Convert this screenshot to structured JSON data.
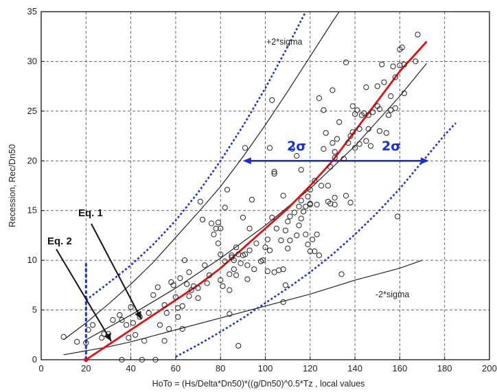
{
  "chart_data": {
    "type": "scatter",
    "title": "",
    "xlabel": "HoTo = (Hs/Delta*Dn50)*((g/Dn50)^0.5*Tz , local values",
    "ylabel": "Recession, Rec/Dn50",
    "xlim": [
      0,
      200
    ],
    "ylim": [
      0,
      35
    ],
    "x_ticks": [
      0,
      20,
      40,
      60,
      80,
      100,
      120,
      140,
      160,
      180,
      200
    ],
    "y_ticks": [
      0,
      5,
      10,
      15,
      20,
      25,
      30,
      35
    ],
    "grid": true,
    "scatter_points": [
      [
        10,
        2.3
      ],
      [
        16,
        1.8
      ],
      [
        20,
        1.7
      ],
      [
        21,
        3.0
      ],
      [
        23,
        3.5
      ],
      [
        27,
        2.2
      ],
      [
        28,
        2.6
      ],
      [
        30,
        2.6
      ],
      [
        32,
        4.0
      ],
      [
        35,
        4.5
      ],
      [
        36,
        4.0
      ],
      [
        36,
        0.0
      ],
      [
        38,
        3.5
      ],
      [
        39,
        2.2
      ],
      [
        40,
        5.3
      ],
      [
        41,
        3.7
      ],
      [
        42,
        2.5
      ],
      [
        44,
        4.3
      ],
      [
        45,
        0.0
      ],
      [
        46,
        1.9
      ],
      [
        48,
        4.7
      ],
      [
        50,
        6.5
      ],
      [
        51,
        0.0
      ],
      [
        52,
        7.3
      ],
      [
        53,
        3.5
      ],
      [
        55,
        5.5
      ],
      [
        55,
        1.9
      ],
      [
        56,
        4.7
      ],
      [
        57,
        3.1
      ],
      [
        58,
        7.8
      ],
      [
        59,
        7.5
      ],
      [
        60,
        6.3
      ],
      [
        61,
        5.2
      ],
      [
        61,
        4.3
      ],
      [
        62,
        8.2
      ],
      [
        63,
        3.1
      ],
      [
        63,
        5.4
      ],
      [
        64,
        10.0
      ],
      [
        65,
        7.6
      ],
      [
        66,
        6.4
      ],
      [
        66,
        8.8
      ],
      [
        67,
        7.0
      ],
      [
        68,
        7.4
      ],
      [
        70,
        6.2
      ],
      [
        70,
        7.2
      ],
      [
        71,
        15.9
      ],
      [
        72,
        14.1
      ],
      [
        73,
        9.5
      ],
      [
        74,
        7.7
      ],
      [
        75,
        8.5
      ],
      [
        76,
        13.7
      ],
      [
        77,
        12.6
      ],
      [
        78,
        13.2
      ],
      [
        79,
        13.8
      ],
      [
        79,
        11.7
      ],
      [
        80,
        13.2
      ],
      [
        80,
        10.6
      ],
      [
        80,
        8.0
      ],
      [
        81,
        7.4
      ],
      [
        82,
        15.3
      ],
      [
        82,
        9.9
      ],
      [
        83,
        17.1
      ],
      [
        84,
        8.6
      ],
      [
        84,
        7.0
      ],
      [
        84,
        4.6
      ],
      [
        85,
        10.5
      ],
      [
        85,
        10.3
      ],
      [
        86,
        10.0
      ],
      [
        86,
        9.1
      ],
      [
        87,
        8.5
      ],
      [
        87,
        11.3
      ],
      [
        88,
        1.4
      ],
      [
        88,
        10.6
      ],
      [
        89,
        9.7
      ],
      [
        90,
        14.3
      ],
      [
        90,
        10.5
      ],
      [
        91,
        21.3
      ],
      [
        91,
        10.6
      ],
      [
        92,
        8.1
      ],
      [
        92,
        9.5
      ],
      [
        93,
        13.2
      ],
      [
        93,
        11.0
      ],
      [
        94,
        16.1
      ],
      [
        95,
        9.1
      ],
      [
        96,
        11.7
      ],
      [
        98,
        9.9
      ],
      [
        99,
        10.0
      ],
      [
        100,
        11.3
      ],
      [
        101,
        8.9
      ],
      [
        101,
        12.1
      ],
      [
        102,
        11.0
      ],
      [
        102,
        21.3
      ],
      [
        103,
        14.3
      ],
      [
        103,
        26.1
      ],
      [
        104,
        18.9
      ],
      [
        104,
        18.7
      ],
      [
        104,
        8.8
      ],
      [
        105,
        13.2
      ],
      [
        106,
        9.0
      ],
      [
        107,
        12.0
      ],
      [
        108,
        16.5
      ],
      [
        108,
        9.1
      ],
      [
        108,
        5.8
      ],
      [
        109,
        7.5
      ],
      [
        109,
        13.0
      ],
      [
        110,
        13.9
      ],
      [
        110,
        11.2
      ],
      [
        111,
        12.0
      ],
      [
        111,
        14.4
      ],
      [
        112,
        21.2
      ],
      [
        113,
        14.8
      ],
      [
        114,
        20.5
      ],
      [
        114,
        12.5
      ],
      [
        115,
        15.4
      ],
      [
        115,
        13.5
      ],
      [
        116,
        16.0
      ],
      [
        116,
        14.2
      ],
      [
        116,
        19.1
      ],
      [
        117,
        14.9
      ],
      [
        118,
        12.6
      ],
      [
        118,
        15.4
      ],
      [
        119,
        11.6
      ],
      [
        119,
        16.4
      ],
      [
        120,
        17.1
      ],
      [
        120,
        15.7
      ],
      [
        120,
        15.6
      ],
      [
        120,
        10.9
      ],
      [
        121,
        12.1
      ],
      [
        122,
        18.0
      ],
      [
        122,
        10.9
      ],
      [
        123,
        12.6
      ],
      [
        123,
        15.6
      ],
      [
        124,
        10.5
      ],
      [
        124,
        26.3
      ],
      [
        125,
        17.5
      ],
      [
        126,
        21.2
      ],
      [
        126,
        25.1
      ],
      [
        127,
        22.8
      ],
      [
        128,
        15.9
      ],
      [
        128,
        17.5
      ],
      [
        129,
        19.4
      ],
      [
        129,
        15.7
      ],
      [
        130,
        21.8
      ],
      [
        130,
        27.1
      ],
      [
        131,
        20.3
      ],
      [
        131,
        15.6
      ],
      [
        131,
        16.3
      ],
      [
        131,
        20.9
      ],
      [
        132,
        22.2
      ],
      [
        133,
        23.9
      ],
      [
        134,
        8.6
      ],
      [
        135,
        20.2
      ],
      [
        136,
        16.5
      ],
      [
        136,
        29.9
      ],
      [
        137,
        21.8
      ],
      [
        138,
        22.5
      ],
      [
        138,
        15.8
      ],
      [
        139,
        22.9
      ],
      [
        139,
        25.5
      ],
      [
        140,
        24.7
      ],
      [
        140,
        21.3
      ],
      [
        141,
        25.1
      ],
      [
        142,
        23.2
      ],
      [
        142,
        21.7
      ],
      [
        143,
        24.6
      ],
      [
        144,
        24.8
      ],
      [
        145,
        22.0
      ],
      [
        145,
        27.4
      ],
      [
        146,
        24.6
      ],
      [
        146,
        23.2
      ],
      [
        147,
        21.5
      ],
      [
        148,
        24.9
      ],
      [
        150,
        27.5
      ],
      [
        150,
        25.5
      ],
      [
        151,
        23.0
      ],
      [
        151,
        25.2
      ],
      [
        152,
        29.7
      ],
      [
        153,
        27.9
      ],
      [
        154,
        22.8
      ],
      [
        155,
        24.6
      ],
      [
        156,
        26.5
      ],
      [
        156,
        25.1
      ],
      [
        157,
        29.5
      ],
      [
        158,
        28.4
      ],
      [
        158,
        25.3
      ],
      [
        159,
        14.4
      ],
      [
        160,
        29.6
      ],
      [
        160,
        31.2
      ],
      [
        161,
        31.4
      ],
      [
        162,
        29.7
      ],
      [
        162,
        26.8
      ],
      [
        167,
        30.0
      ],
      [
        168,
        32.7
      ]
    ],
    "annotations": {
      "upper_curve_label": "+2*sigma",
      "lower_curve_label": "-2*sigma",
      "sigma_label_left": "2σ",
      "sigma_label_right": "2σ",
      "eq1_label": "Eq. 1",
      "eq2_label": "Eq. 2"
    },
    "curves": {
      "red_fit": [
        [
          20,
          0
        ],
        [
          30,
          1.5
        ],
        [
          40,
          3
        ],
        [
          50,
          4.5
        ],
        [
          60,
          6
        ],
        [
          70,
          7.5
        ],
        [
          80,
          9.2
        ],
        [
          90,
          11.2
        ],
        [
          100,
          13.2
        ],
        [
          110,
          15.2
        ],
        [
          120,
          17.5
        ],
        [
          130,
          20
        ],
        [
          140,
          23
        ],
        [
          150,
          26
        ],
        [
          160,
          29
        ],
        [
          172,
          32
        ]
      ],
      "upper_sigma": [
        [
          10,
          2
        ],
        [
          20,
          3.7
        ],
        [
          30,
          5.6
        ],
        [
          40,
          7.6
        ],
        [
          50,
          9.8
        ],
        [
          60,
          12.3
        ],
        [
          70,
          14.8
        ],
        [
          80,
          17.4
        ],
        [
          90,
          20.4
        ],
        [
          100,
          23.6
        ],
        [
          110,
          27
        ],
        [
          120,
          30.5
        ],
        [
          130,
          34
        ],
        [
          133,
          35
        ]
      ],
      "lower_sigma": [
        [
          10,
          0.5
        ],
        [
          20,
          0.9
        ],
        [
          30,
          1.3
        ],
        [
          40,
          1.8
        ],
        [
          50,
          2.4
        ],
        [
          60,
          3.0
        ],
        [
          80,
          4.2
        ],
        [
          100,
          5.4
        ],
        [
          120,
          6.6
        ],
        [
          140,
          8
        ],
        [
          160,
          9.2
        ],
        [
          170,
          10
        ]
      ],
      "middle_fit": [
        [
          20,
          2
        ],
        [
          40,
          4.5
        ],
        [
          60,
          7.2
        ],
        [
          80,
          10.2
        ],
        [
          100,
          13.5
        ],
        [
          120,
          17.2
        ],
        [
          140,
          21.5
        ],
        [
          160,
          26.5
        ],
        [
          172,
          29.8
        ]
      ],
      "blue_upper_dotted": [
        [
          20,
          6
        ],
        [
          30,
          7.7
        ],
        [
          40,
          9.5
        ],
        [
          50,
          11.6
        ],
        [
          60,
          14
        ],
        [
          70,
          16.8
        ],
        [
          80,
          20
        ],
        [
          90,
          23.5
        ],
        [
          100,
          27.3
        ],
        [
          110,
          31.5
        ],
        [
          118,
          35
        ]
      ],
      "blue_lower_dotted": [
        [
          60,
          0.3
        ],
        [
          70,
          1.5
        ],
        [
          80,
          2.8
        ],
        [
          90,
          4.2
        ],
        [
          100,
          5.7
        ],
        [
          110,
          7.2
        ],
        [
          120,
          8.8
        ],
        [
          130,
          10.6
        ],
        [
          140,
          12.6
        ],
        [
          150,
          14.8
        ],
        [
          160,
          17.2
        ],
        [
          170,
          19.9
        ],
        [
          180,
          22.6
        ],
        [
          185,
          23.8
        ]
      ],
      "blue_vertical": {
        "x": 20,
        "y": [
          0,
          9.7
        ]
      },
      "blue_arrow": {
        "y": 20,
        "x": [
          90,
          173
        ]
      }
    }
  }
}
